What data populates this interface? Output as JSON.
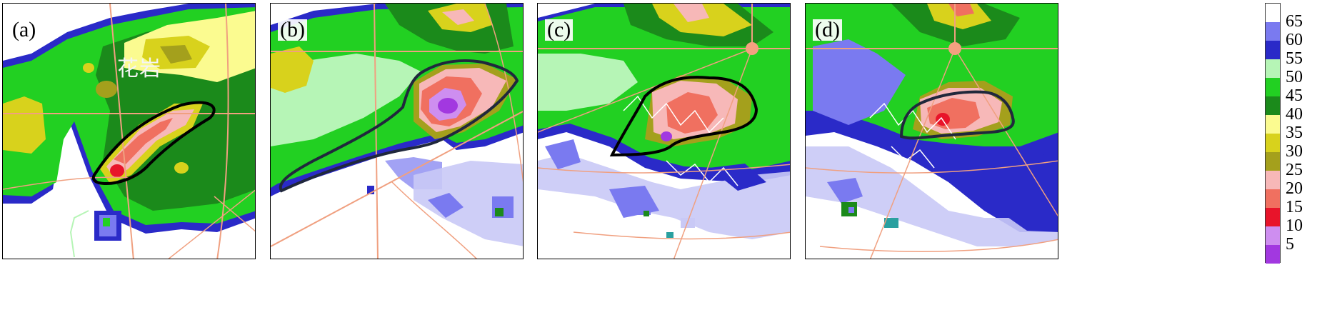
{
  "panels": [
    {
      "label": "(a)",
      "place_label": "花岩"
    },
    {
      "label": "(b)"
    },
    {
      "label": "(c)"
    },
    {
      "label": "(d)"
    }
  ],
  "colorbar": {
    "ticks": [
      "65",
      "60",
      "55",
      "50",
      "45",
      "40",
      "35",
      "30",
      "25",
      "20",
      "15",
      "10",
      "5"
    ],
    "colors": [
      "#ffffff",
      "#7a7af0",
      "#2a2ac8",
      "#b6f5b6",
      "#22d022",
      "#1b8a1b",
      "#fbfb90",
      "#d8d21c",
      "#a4a01c",
      "#f7b8b8",
      "#f07060",
      "#e8142a",
      "#ce8ef0",
      "#a238e0"
    ]
  }
}
